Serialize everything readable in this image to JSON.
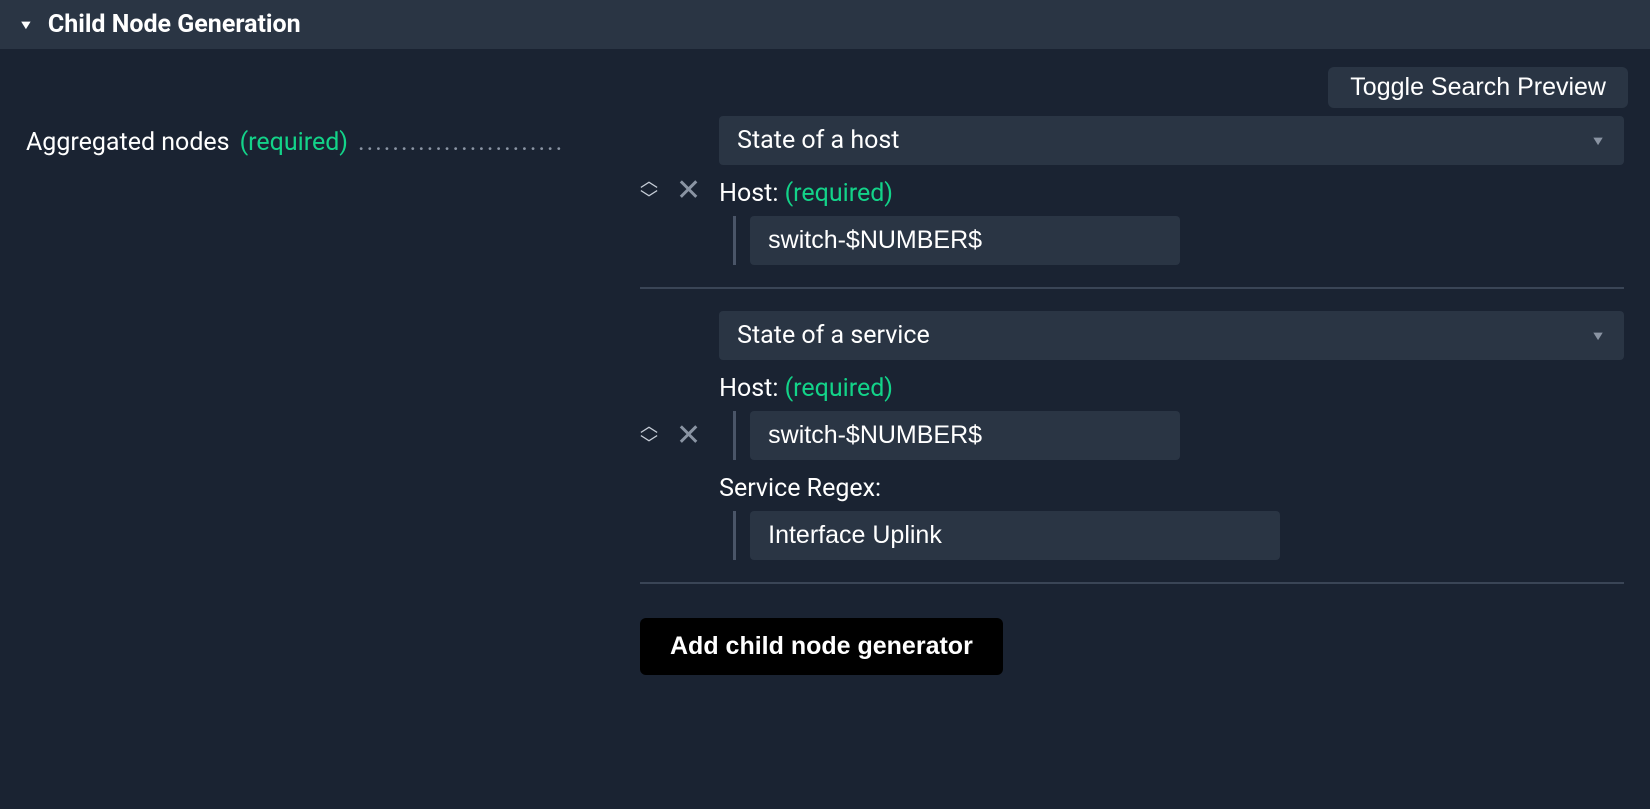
{
  "colors": {
    "page_bg": "#1a2332",
    "panel_bg": "#2a3544",
    "text": "#ffffff",
    "required": "#13d389",
    "muted": "#8a94a3",
    "divider": "#3a4556",
    "input_bar": "#4a5568",
    "button_bg": "#000000"
  },
  "header": {
    "title": "Child Node Generation"
  },
  "actions": {
    "toggle_search_preview": "Toggle Search Preview",
    "add_generator": "Add child node generator"
  },
  "left": {
    "label": "Aggregated nodes",
    "required_text": "(required)",
    "dots": "........................"
  },
  "nodes": [
    {
      "select_value": "State of a host",
      "fields": [
        {
          "label": "Host:",
          "required": "(required)",
          "value": "switch-$NUMBER$",
          "wide": false
        }
      ]
    },
    {
      "select_value": "State of a service",
      "fields": [
        {
          "label": "Host:",
          "required": "(required)",
          "value": "switch-$NUMBER$",
          "wide": false
        },
        {
          "label": "Service Regex:",
          "required": "",
          "value": "Interface Uplink",
          "wide": true
        }
      ]
    }
  ]
}
